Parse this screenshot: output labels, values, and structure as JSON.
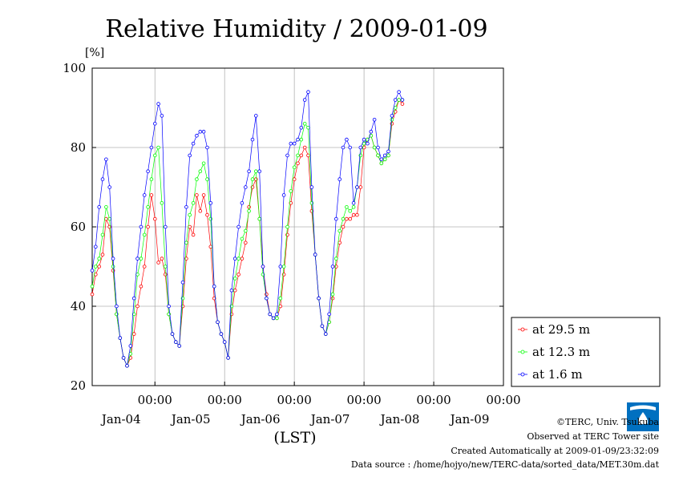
{
  "chart_data": {
    "type": "line",
    "title": "Relative Humidity / 2009-01-09",
    "ylabel": "[%]",
    "xlabel": "(LST)",
    "ylim": [
      20,
      100
    ],
    "yticks": [
      20,
      40,
      60,
      80,
      100
    ],
    "xlim_days": [
      -0.9,
      5.0
    ],
    "xticks": [
      {
        "time": "00:00",
        "date": "Jan-04"
      },
      {
        "time": "00:00",
        "date": "Jan-05"
      },
      {
        "time": "00:00",
        "date": "Jan-06"
      },
      {
        "time": "00:00",
        "date": "Jan-07"
      },
      {
        "time": "00:00",
        "date": "Jan-08"
      },
      {
        "time": "00:00",
        "date": "Jan-09"
      }
    ],
    "grid": true,
    "legend_position": "bottom-right",
    "series": [
      {
        "name": "at 29.5 m",
        "color": "#ff0000",
        "points": [
          [
            -0.9,
            43
          ],
          [
            -0.85,
            48
          ],
          [
            -0.8,
            50
          ],
          [
            -0.75,
            53
          ],
          [
            -0.7,
            62
          ],
          [
            -0.65,
            60
          ],
          [
            -0.6,
            49
          ],
          [
            -0.55,
            38
          ],
          [
            -0.5,
            32
          ],
          [
            -0.45,
            27
          ],
          [
            -0.4,
            25
          ],
          [
            -0.35,
            27
          ],
          [
            -0.3,
            33
          ],
          [
            -0.25,
            40
          ],
          [
            -0.2,
            45
          ],
          [
            -0.15,
            50
          ],
          [
            -0.1,
            60
          ],
          [
            -0.05,
            68
          ],
          [
            0.0,
            62
          ],
          [
            0.05,
            51
          ],
          [
            0.1,
            52
          ],
          [
            0.15,
            48
          ],
          [
            0.2,
            38
          ],
          [
            0.25,
            33
          ],
          [
            0.3,
            31
          ],
          [
            0.35,
            30
          ],
          [
            0.4,
            40
          ],
          [
            0.45,
            52
          ],
          [
            0.5,
            60
          ],
          [
            0.55,
            58
          ],
          [
            0.6,
            68
          ],
          [
            0.65,
            64
          ],
          [
            0.7,
            68
          ],
          [
            0.75,
            63
          ],
          [
            0.8,
            55
          ],
          [
            0.85,
            42
          ],
          [
            0.9,
            36
          ],
          [
            0.95,
            33
          ],
          [
            1.0,
            31
          ],
          [
            1.05,
            27
          ],
          [
            1.1,
            38
          ],
          [
            1.15,
            44
          ],
          [
            1.2,
            48
          ],
          [
            1.25,
            52
          ],
          [
            1.3,
            56
          ],
          [
            1.35,
            65
          ],
          [
            1.4,
            70
          ],
          [
            1.45,
            72
          ],
          [
            1.5,
            62
          ],
          [
            1.55,
            50
          ],
          [
            1.6,
            43
          ],
          [
            1.65,
            38
          ],
          [
            1.7,
            37
          ],
          [
            1.75,
            37
          ],
          [
            1.8,
            40
          ],
          [
            1.85,
            48
          ],
          [
            1.9,
            58
          ],
          [
            1.95,
            66
          ],
          [
            2.0,
            72
          ],
          [
            2.05,
            76
          ],
          [
            2.1,
            78
          ],
          [
            2.15,
            80
          ],
          [
            2.2,
            78
          ],
          [
            2.25,
            64
          ],
          [
            2.3,
            53
          ],
          [
            2.35,
            42
          ],
          [
            2.4,
            35
          ],
          [
            2.45,
            33
          ],
          [
            2.5,
            36
          ],
          [
            2.55,
            42
          ],
          [
            2.6,
            50
          ],
          [
            2.65,
            56
          ],
          [
            2.7,
            60
          ],
          [
            2.75,
            62
          ],
          [
            2.8,
            62
          ],
          [
            2.85,
            63
          ],
          [
            2.9,
            63
          ],
          [
            2.95,
            70
          ],
          [
            3.0,
            80
          ],
          [
            3.05,
            82
          ],
          [
            3.1,
            83
          ],
          [
            3.15,
            80
          ],
          [
            3.2,
            78
          ],
          [
            3.25,
            76
          ],
          [
            3.3,
            77
          ],
          [
            3.35,
            78
          ],
          [
            3.4,
            86
          ],
          [
            3.45,
            89
          ],
          [
            3.5,
            92
          ],
          [
            3.55,
            91
          ]
        ]
      },
      {
        "name": "at 12.3 m",
        "color": "#00ff00",
        "points": [
          [
            -0.9,
            45
          ],
          [
            -0.85,
            50
          ],
          [
            -0.8,
            52
          ],
          [
            -0.75,
            58
          ],
          [
            -0.7,
            65
          ],
          [
            -0.65,
            62
          ],
          [
            -0.6,
            50
          ],
          [
            -0.55,
            38
          ],
          [
            -0.5,
            32
          ],
          [
            -0.45,
            27
          ],
          [
            -0.4,
            25
          ],
          [
            -0.35,
            28
          ],
          [
            -0.3,
            38
          ],
          [
            -0.25,
            48
          ],
          [
            -0.2,
            52
          ],
          [
            -0.15,
            58
          ],
          [
            -0.1,
            65
          ],
          [
            -0.05,
            72
          ],
          [
            0.0,
            78
          ],
          [
            0.05,
            80
          ],
          [
            0.1,
            66
          ],
          [
            0.15,
            50
          ],
          [
            0.2,
            38
          ],
          [
            0.25,
            33
          ],
          [
            0.3,
            31
          ],
          [
            0.35,
            30
          ],
          [
            0.4,
            42
          ],
          [
            0.45,
            56
          ],
          [
            0.5,
            63
          ],
          [
            0.55,
            66
          ],
          [
            0.6,
            72
          ],
          [
            0.65,
            74
          ],
          [
            0.7,
            76
          ],
          [
            0.75,
            72
          ],
          [
            0.8,
            62
          ],
          [
            0.85,
            45
          ],
          [
            0.9,
            36
          ],
          [
            0.95,
            33
          ],
          [
            1.0,
            31
          ],
          [
            1.05,
            27
          ],
          [
            1.1,
            40
          ],
          [
            1.15,
            47
          ],
          [
            1.2,
            52
          ],
          [
            1.25,
            57
          ],
          [
            1.3,
            59
          ],
          [
            1.35,
            64
          ],
          [
            1.4,
            72
          ],
          [
            1.45,
            74
          ],
          [
            1.5,
            62
          ],
          [
            1.55,
            48
          ],
          [
            1.6,
            42
          ],
          [
            1.65,
            38
          ],
          [
            1.7,
            37
          ],
          [
            1.75,
            37
          ],
          [
            1.8,
            42
          ],
          [
            1.85,
            50
          ],
          [
            1.9,
            60
          ],
          [
            1.95,
            69
          ],
          [
            2.0,
            75
          ],
          [
            2.05,
            78
          ],
          [
            2.1,
            82
          ],
          [
            2.15,
            86
          ],
          [
            2.2,
            85
          ],
          [
            2.25,
            66
          ],
          [
            2.3,
            53
          ],
          [
            2.35,
            42
          ],
          [
            2.4,
            35
          ],
          [
            2.45,
            33
          ],
          [
            2.5,
            36
          ],
          [
            2.55,
            43
          ],
          [
            2.6,
            52
          ],
          [
            2.65,
            59
          ],
          [
            2.7,
            62
          ],
          [
            2.75,
            65
          ],
          [
            2.8,
            64
          ],
          [
            2.85,
            65
          ],
          [
            2.9,
            70
          ],
          [
            2.95,
            78
          ],
          [
            3.0,
            81
          ],
          [
            3.05,
            82
          ],
          [
            3.1,
            83
          ],
          [
            3.15,
            80
          ],
          [
            3.2,
            78
          ],
          [
            3.25,
            76
          ],
          [
            3.3,
            77
          ],
          [
            3.35,
            78
          ],
          [
            3.4,
            87
          ],
          [
            3.45,
            90
          ],
          [
            3.5,
            92
          ],
          [
            3.55,
            92
          ]
        ]
      },
      {
        "name": "at 1.6 m",
        "color": "#0000ff",
        "points": [
          [
            -0.9,
            49
          ],
          [
            -0.85,
            55
          ],
          [
            -0.8,
            65
          ],
          [
            -0.75,
            72
          ],
          [
            -0.7,
            77
          ],
          [
            -0.65,
            70
          ],
          [
            -0.6,
            52
          ],
          [
            -0.55,
            40
          ],
          [
            -0.5,
            32
          ],
          [
            -0.45,
            27
          ],
          [
            -0.4,
            25
          ],
          [
            -0.35,
            30
          ],
          [
            -0.3,
            42
          ],
          [
            -0.25,
            52
          ],
          [
            -0.2,
            60
          ],
          [
            -0.15,
            68
          ],
          [
            -0.1,
            74
          ],
          [
            -0.05,
            80
          ],
          [
            0.0,
            86
          ],
          [
            0.05,
            91
          ],
          [
            0.1,
            88
          ],
          [
            0.15,
            60
          ],
          [
            0.2,
            40
          ],
          [
            0.25,
            33
          ],
          [
            0.3,
            31
          ],
          [
            0.35,
            30
          ],
          [
            0.4,
            46
          ],
          [
            0.45,
            65
          ],
          [
            0.5,
            78
          ],
          [
            0.55,
            81
          ],
          [
            0.6,
            83
          ],
          [
            0.65,
            84
          ],
          [
            0.7,
            84
          ],
          [
            0.75,
            80
          ],
          [
            0.8,
            66
          ],
          [
            0.85,
            45
          ],
          [
            0.9,
            36
          ],
          [
            0.95,
            33
          ],
          [
            1.0,
            31
          ],
          [
            1.05,
            27
          ],
          [
            1.1,
            44
          ],
          [
            1.15,
            52
          ],
          [
            1.2,
            60
          ],
          [
            1.25,
            66
          ],
          [
            1.3,
            70
          ],
          [
            1.35,
            74
          ],
          [
            1.4,
            82
          ],
          [
            1.45,
            88
          ],
          [
            1.5,
            74
          ],
          [
            1.55,
            50
          ],
          [
            1.6,
            42
          ],
          [
            1.65,
            38
          ],
          [
            1.7,
            37
          ],
          [
            1.75,
            38
          ],
          [
            1.8,
            50
          ],
          [
            1.85,
            68
          ],
          [
            1.9,
            78
          ],
          [
            1.95,
            81
          ],
          [
            2.0,
            81
          ],
          [
            2.05,
            82
          ],
          [
            2.1,
            85
          ],
          [
            2.15,
            92
          ],
          [
            2.2,
            94
          ],
          [
            2.25,
            70
          ],
          [
            2.3,
            53
          ],
          [
            2.35,
            42
          ],
          [
            2.4,
            35
          ],
          [
            2.45,
            33
          ],
          [
            2.5,
            38
          ],
          [
            2.55,
            50
          ],
          [
            2.6,
            62
          ],
          [
            2.65,
            72
          ],
          [
            2.7,
            80
          ],
          [
            2.75,
            82
          ],
          [
            2.8,
            80
          ],
          [
            2.85,
            66
          ],
          [
            2.9,
            70
          ],
          [
            2.95,
            80
          ],
          [
            3.0,
            82
          ],
          [
            3.05,
            81
          ],
          [
            3.1,
            84
          ],
          [
            3.15,
            87
          ],
          [
            3.2,
            80
          ],
          [
            3.25,
            77
          ],
          [
            3.3,
            78
          ],
          [
            3.35,
            79
          ],
          [
            3.4,
            88
          ],
          [
            3.45,
            92
          ],
          [
            3.5,
            94
          ],
          [
            3.55,
            92
          ]
        ]
      }
    ]
  },
  "footer": {
    "copyright": "©TERC, Univ. Tsukuba",
    "observed": "Observed at TERC Tower site",
    "created": "Created Automatically at 2009-01-09/23:32:09",
    "source": "Data source : /home/hojyo/new/TERC-data/sorted_data/MET.30m.dat",
    "logo_text": "TERC",
    "logo_color": "#0070c0"
  }
}
